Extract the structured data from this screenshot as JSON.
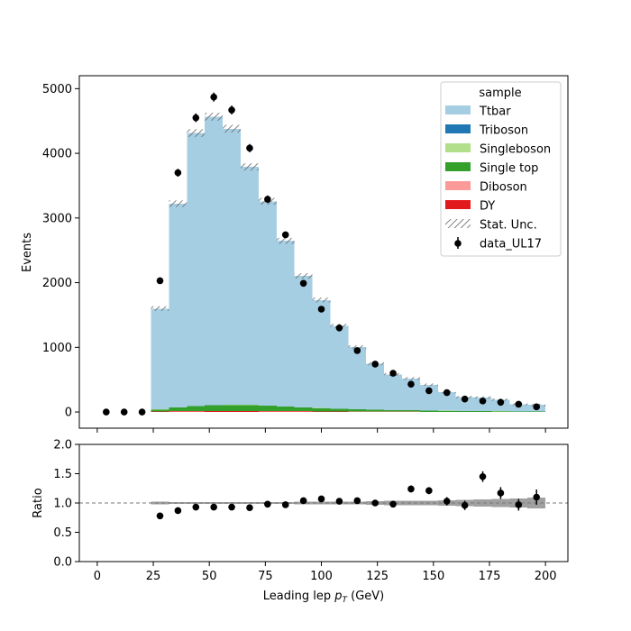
{
  "chart_data": [
    {
      "type": "stacked-histogram",
      "ylabel": "Events",
      "xlim": [
        -8,
        210
      ],
      "ylim": [
        -250,
        5200
      ],
      "yticks": [
        0,
        1000,
        2000,
        3000,
        4000,
        5000
      ],
      "xticks": [
        0,
        25,
        50,
        75,
        100,
        125,
        150,
        175,
        200
      ],
      "bin_edges": [
        24,
        32,
        40,
        48,
        56,
        64,
        72,
        80,
        88,
        96,
        104,
        112,
        120,
        128,
        136,
        144,
        152,
        160,
        168,
        176,
        184,
        192,
        200
      ],
      "mc_stack": [
        {
          "name": "DY",
          "color": "#e31a1c",
          "values": [
            5,
            8,
            10,
            12,
            12,
            12,
            10,
            9,
            8,
            6,
            5,
            4,
            4,
            3,
            3,
            2,
            2,
            2,
            1,
            1,
            1,
            1
          ]
        },
        {
          "name": "Diboson",
          "color": "#fb9a99",
          "values": [
            3,
            5,
            6,
            6,
            6,
            6,
            5,
            5,
            4,
            4,
            3,
            3,
            2,
            2,
            2,
            1,
            1,
            1,
            1,
            1,
            1,
            1
          ]
        },
        {
          "name": "Single top",
          "color": "#33a02c",
          "values": [
            30,
            55,
            75,
            85,
            90,
            88,
            80,
            70,
            60,
            50,
            42,
            35,
            30,
            25,
            22,
            18,
            15,
            13,
            11,
            9,
            8,
            7
          ]
        },
        {
          "name": "Singleboson",
          "color": "#b2df8a",
          "values": [
            2,
            3,
            3,
            3,
            3,
            3,
            3,
            2,
            2,
            2,
            2,
            1,
            1,
            1,
            1,
            1,
            1,
            1,
            1,
            1,
            1,
            1
          ]
        },
        {
          "name": "Triboson",
          "color": "#1f78b4",
          "values": [
            0,
            0,
            0,
            0,
            0,
            0,
            0,
            0,
            0,
            0,
            0,
            0,
            0,
            0,
            0,
            0,
            0,
            0,
            0,
            0,
            0,
            0
          ]
        },
        {
          "name": "Ttbar",
          "color": "#a6cee3",
          "values": [
            1560,
            3150,
            4220,
            4460,
            4270,
            3680,
            3160,
            2560,
            2030,
            1670,
            1280,
            960,
            710,
            549,
            491,
            400,
            288,
            212,
            211,
            178,
            111,
            100
          ]
        }
      ],
      "stat_unc_label": "Stat. Unc.",
      "data": {
        "name": "data_UL17",
        "x": [
          4,
          12,
          20,
          28,
          36,
          44,
          52,
          60,
          68,
          76,
          84,
          92,
          100,
          108,
          116,
          124,
          132,
          140,
          148,
          156,
          164,
          172,
          180,
          188,
          196
        ],
        "y": [
          0,
          0,
          0,
          2030,
          3700,
          4550,
          4870,
          4670,
          4080,
          3290,
          2740,
          1990,
          1590,
          1300,
          950,
          740,
          600,
          430,
          330,
          300,
          200,
          170,
          150,
          120,
          80
        ]
      },
      "legend": {
        "title": "sample",
        "position": "top-right",
        "entries": [
          "Ttbar",
          "Triboson",
          "Singleboson",
          "Single top",
          "Diboson",
          "DY",
          "Stat. Unc.",
          "data_UL17"
        ]
      }
    },
    {
      "type": "ratio",
      "xlabel": "Leading lep p_T (GeV)",
      "ylabel": "Ratio",
      "xlim": [
        -8,
        210
      ],
      "ylim": [
        0.0,
        2.0
      ],
      "yticks": [
        "0.0",
        "0.5",
        "1.0",
        "1.5",
        "2.0"
      ],
      "xticks": [
        "0",
        "25",
        "50",
        "75",
        "100",
        "125",
        "150",
        "175",
        "200"
      ],
      "reference_line": 1.0,
      "x": [
        28,
        36,
        44,
        52,
        60,
        68,
        76,
        84,
        92,
        100,
        108,
        116,
        124,
        132,
        140,
        148,
        156,
        164,
        172,
        180,
        188,
        196
      ],
      "y": [
        0.78,
        0.87,
        0.93,
        0.93,
        0.93,
        0.92,
        0.98,
        0.97,
        1.04,
        1.07,
        1.03,
        1.04,
        1.0,
        0.98,
        1.24,
        1.21,
        1.03,
        0.96,
        1.45,
        1.17,
        0.97,
        1.1
      ],
      "yerr": [
        0.02,
        0.02,
        0.02,
        0.02,
        0.02,
        0.02,
        0.02,
        0.02,
        0.03,
        0.03,
        0.03,
        0.04,
        0.04,
        0.05,
        0.06,
        0.06,
        0.07,
        0.08,
        0.09,
        0.1,
        0.1,
        0.13
      ],
      "unc_band_halfwidth": [
        0.02,
        0.015,
        0.015,
        0.015,
        0.015,
        0.015,
        0.015,
        0.015,
        0.02,
        0.02,
        0.025,
        0.025,
        0.03,
        0.035,
        0.035,
        0.04,
        0.045,
        0.055,
        0.06,
        0.07,
        0.08,
        0.09
      ]
    }
  ]
}
